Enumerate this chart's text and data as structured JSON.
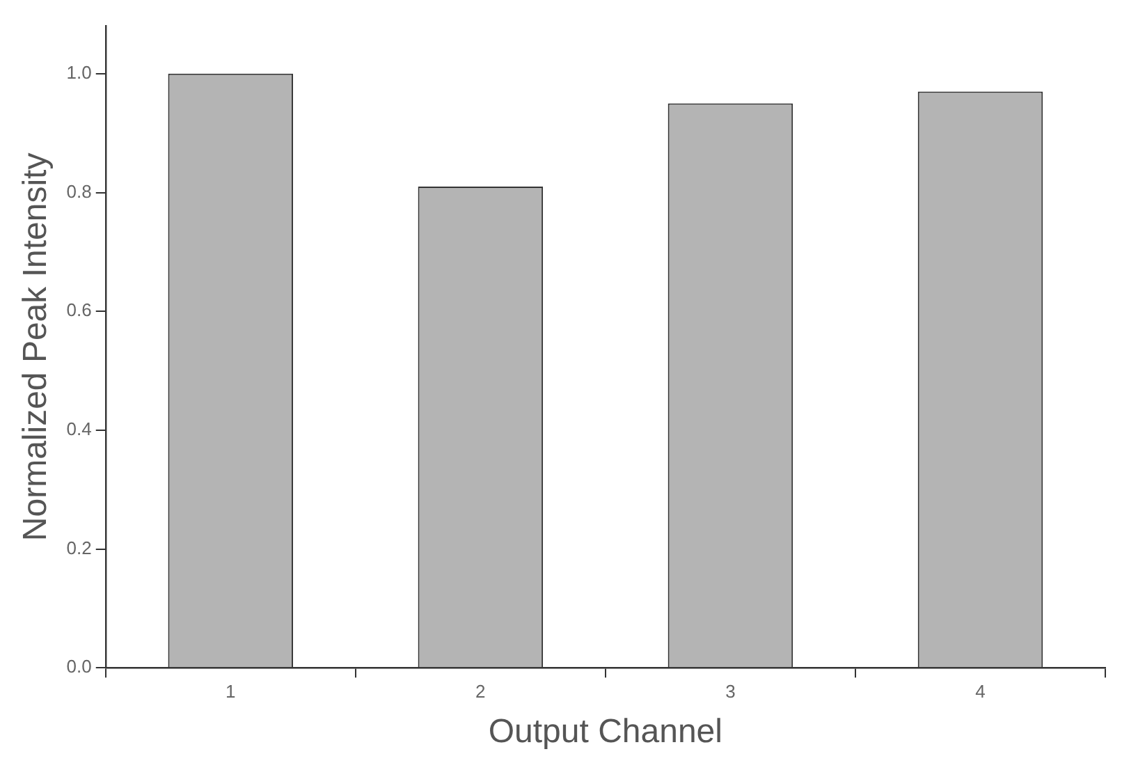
{
  "chart_data": {
    "type": "bar",
    "xlabel": "Output Channel",
    "ylabel": "Normalized Peak Intensity",
    "categories": [
      "1",
      "2",
      "3",
      "4"
    ],
    "values": [
      1.0,
      0.81,
      0.95,
      0.97
    ],
    "color": "#b4b4b4",
    "ylim": [
      0,
      1.08
    ],
    "yticks": [
      {
        "value": 0,
        "label": "0.0"
      },
      {
        "value": 0.2,
        "label": "0.2"
      },
      {
        "value": 0.4,
        "label": "0.4"
      },
      {
        "value": 0.6,
        "label": "0.6"
      },
      {
        "value": 0.8,
        "label": "0.8"
      },
      {
        "value": 1.0,
        "label": "1.0"
      }
    ],
    "grid": false,
    "legend": false
  }
}
